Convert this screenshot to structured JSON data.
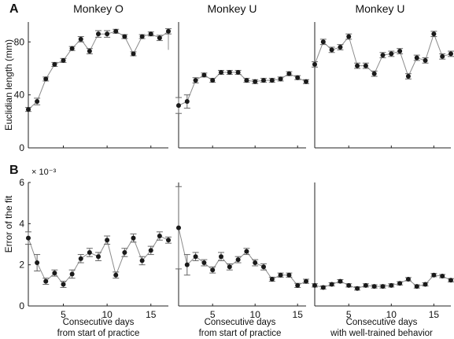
{
  "panel_labels": [
    "A",
    "B"
  ],
  "column_titles": [
    "Monkey O",
    "Monkey U",
    "Monkey U"
  ],
  "ylabels": [
    "Euclidian length (mm)",
    "Error of the fit"
  ],
  "exponent_label": "× 10⁻³",
  "xlabels": [
    [
      "Consecutive days",
      "from start of practice"
    ],
    [
      "Consecutive days",
      "from start of practice"
    ],
    [
      "Consecutive days",
      "with well-trained behavior"
    ]
  ],
  "colors": {
    "line": "#8c8c8c",
    "marker": "#1a1a1a",
    "errorbar": "#666666",
    "axis": "#222222"
  },
  "chart_data": [
    {
      "type": "line",
      "row": "A",
      "title": "Monkey O",
      "ylabel": "Euclidian length (mm)",
      "xlabel": "",
      "xlim": [
        1,
        17
      ],
      "ylim": [
        0,
        95
      ],
      "xticks": [
        5,
        10,
        15
      ],
      "yticks": [
        0,
        40,
        80
      ],
      "xtick_labels_shown": false,
      "series": [
        {
          "x": [
            1,
            2,
            3,
            4,
            5,
            6,
            7,
            8,
            9,
            10,
            11,
            12,
            13,
            14,
            15,
            16,
            17
          ],
          "y": [
            29,
            35,
            52,
            63,
            66,
            75,
            82,
            73,
            86,
            86,
            88,
            84,
            71,
            84,
            86,
            83,
            88
          ],
          "err": [
            1.5,
            2.5,
            1.5,
            1.5,
            1.5,
            1.5,
            2,
            2,
            2.5,
            2.5,
            1.5,
            1.5,
            1.5,
            1.5,
            1.5,
            2,
            2
          ]
        }
      ],
      "trailing_end": 74
    },
    {
      "type": "line",
      "row": "A",
      "title": "Monkey U",
      "xlim": [
        1,
        16
      ],
      "ylim": [
        0,
        95
      ],
      "xticks": [
        5,
        10,
        15
      ],
      "xtick_labels_shown": false,
      "series": [
        {
          "x": [
            1,
            2,
            3,
            4,
            5,
            6,
            7,
            8,
            9,
            10,
            11,
            12,
            13,
            14,
            15,
            16
          ],
          "y": [
            32,
            35,
            51,
            55,
            51,
            57,
            57,
            57,
            51,
            50,
            51,
            51,
            52,
            56,
            53,
            50
          ],
          "err": [
            6,
            5,
            2,
            1.5,
            1.5,
            1.5,
            1.5,
            1.5,
            1.5,
            1.5,
            1.5,
            1.5,
            1.5,
            1.5,
            1.5,
            1.5
          ]
        }
      ]
    },
    {
      "type": "line",
      "row": "A",
      "title": "Monkey U",
      "xlim": [
        1,
        17
      ],
      "ylim": [
        0,
        95
      ],
      "xticks": [
        5,
        10,
        15
      ],
      "xtick_labels_shown": false,
      "series": [
        {
          "x": [
            1,
            2,
            3,
            4,
            5,
            6,
            7,
            8,
            9,
            10,
            11,
            12,
            13,
            14,
            15,
            16,
            17
          ],
          "y": [
            63,
            80,
            74,
            76,
            84,
            62,
            62,
            56,
            70,
            71,
            73,
            54,
            68,
            66,
            86,
            69,
            71
          ],
          "err": [
            2,
            2,
            2,
            2,
            2,
            2,
            2,
            2,
            2,
            2,
            2,
            2,
            2,
            2,
            2,
            2,
            2
          ]
        }
      ]
    },
    {
      "type": "line",
      "row": "B",
      "ylabel": "Error of the fit",
      "xlabel": "Consecutive days from start of practice",
      "xlim": [
        1,
        17
      ],
      "ylim": [
        0,
        6
      ],
      "y_scale_label": "× 10⁻³",
      "xticks": [
        5,
        10,
        15
      ],
      "yticks": [
        0,
        2,
        4,
        6
      ],
      "series": [
        {
          "x": [
            1,
            2,
            3,
            4,
            5,
            6,
            7,
            8,
            9,
            10,
            11,
            12,
            13,
            14,
            15,
            16,
            17
          ],
          "y": [
            3.3,
            2.1,
            1.2,
            1.6,
            1.05,
            1.55,
            2.3,
            2.6,
            2.4,
            3.2,
            1.5,
            2.6,
            3.3,
            2.2,
            2.7,
            3.4,
            3.2
          ],
          "err": [
            0.3,
            0.4,
            0.15,
            0.15,
            0.15,
            0.2,
            0.2,
            0.2,
            0.2,
            0.2,
            0.15,
            0.2,
            0.2,
            0.2,
            0.2,
            0.2,
            0.15
          ]
        }
      ]
    },
    {
      "type": "line",
      "row": "B",
      "xlabel": "Consecutive days from start of practice",
      "xlim": [
        1,
        16
      ],
      "ylim": [
        0,
        6
      ],
      "xticks": [
        5,
        10,
        15
      ],
      "series": [
        {
          "x": [
            1,
            2,
            3,
            4,
            5,
            6,
            7,
            8,
            9,
            10,
            11,
            12,
            13,
            14,
            15,
            16
          ],
          "y": [
            3.8,
            2.0,
            2.4,
            2.1,
            1.75,
            2.4,
            1.9,
            2.25,
            2.65,
            2.1,
            1.9,
            1.3,
            1.5,
            1.5,
            1.0,
            1.2
          ],
          "err": [
            2.0,
            0.5,
            0.2,
            0.15,
            0.15,
            0.2,
            0.15,
            0.15,
            0.15,
            0.15,
            0.15,
            0.1,
            0.1,
            0.1,
            0.1,
            0.1
          ]
        }
      ]
    },
    {
      "type": "line",
      "row": "B",
      "xlabel": "Consecutive days with well-trained behavior",
      "xlim": [
        1,
        17
      ],
      "ylim": [
        0,
        6
      ],
      "xticks": [
        5,
        10,
        15
      ],
      "series": [
        {
          "x": [
            1,
            2,
            3,
            4,
            5,
            6,
            7,
            8,
            9,
            10,
            11,
            12,
            13,
            14,
            15,
            16,
            17
          ],
          "y": [
            1.0,
            0.9,
            1.05,
            1.2,
            1.0,
            0.85,
            1.0,
            0.95,
            0.95,
            1.0,
            1.1,
            1.3,
            0.95,
            1.05,
            1.5,
            1.45,
            1.25
          ],
          "err": [
            0.08,
            0.08,
            0.08,
            0.08,
            0.08,
            0.08,
            0.08,
            0.08,
            0.08,
            0.08,
            0.08,
            0.08,
            0.08,
            0.08,
            0.08,
            0.08,
            0.08
          ]
        }
      ]
    }
  ]
}
